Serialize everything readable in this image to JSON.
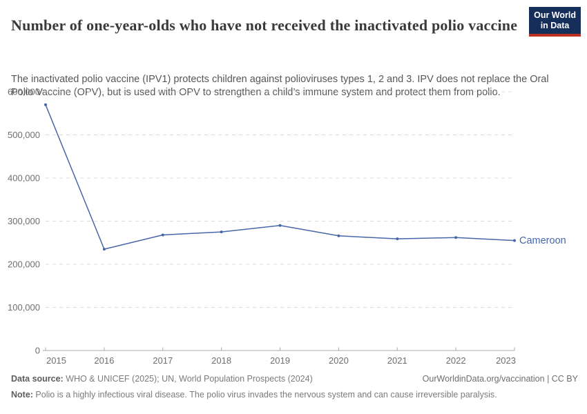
{
  "header": {
    "title": "Number of one-year-olds who have not received the inactivated polio vaccine",
    "subtitle": "The inactivated polio vaccine (IPV1) protects children against polioviruses types 1, 2 and 3. IPV does not replace the Oral Polio Vaccine (OPV), but is used with OPV to strengthen a child’s immune system and protect them from polio."
  },
  "logo": {
    "line1": "Our World",
    "line2": "in Data",
    "bg_color": "#152e5a",
    "accent_color": "#b93224"
  },
  "chart_data": {
    "type": "line",
    "title": "Number of one-year-olds who have not received the inactivated polio vaccine",
    "x": [
      2015,
      2016,
      2017,
      2018,
      2019,
      2020,
      2021,
      2022,
      2023
    ],
    "series": [
      {
        "name": "Cameroon",
        "values": [
          570000,
          235000,
          268000,
          275000,
          290000,
          266000,
          259000,
          262000,
          255000
        ],
        "color": "#4766a8"
      }
    ],
    "xlabel": "",
    "ylabel": "",
    "ylim": [
      0,
      600000
    ],
    "ytick_step": 100000,
    "ytick_labels": [
      "0",
      "100,000",
      "200,000",
      "300,000",
      "400,000",
      "500,000",
      "600,000"
    ],
    "grid": "horizontal dashed",
    "legend": "end-of-line entity label",
    "axis_color": "#a8a8a8",
    "grid_color": "#dcdcdc",
    "tick_label_color": "#6e6e6e"
  },
  "footer": {
    "source_label": "Data source:",
    "source_text": " WHO & UNICEF (2025); UN, World Population Prospects (2024)",
    "link_text": "OurWorldinData.org/vaccination | CC BY",
    "note_label": "Note:",
    "note_text": " Polio is a highly infectious viral disease. The polio virus invades the nervous system and can cause irreversible paralysis."
  }
}
